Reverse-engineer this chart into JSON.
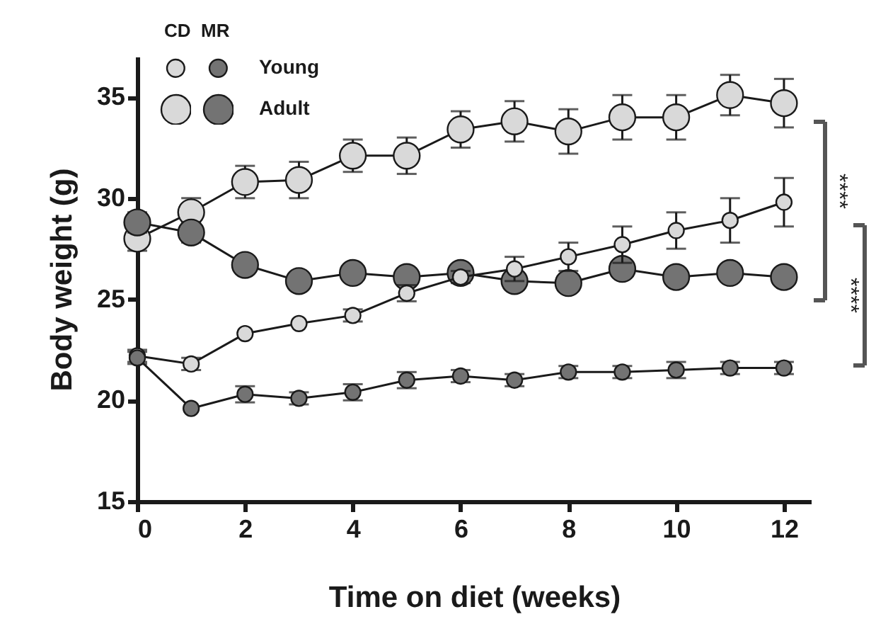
{
  "chart_data": {
    "type": "line",
    "xlabel": "Time on diet (weeks)",
    "ylabel": "Body weight (g)",
    "x": [
      0,
      1,
      2,
      3,
      4,
      5,
      6,
      7,
      8,
      9,
      10,
      11,
      12
    ],
    "xlim": [
      0,
      12.5
    ],
    "xticks": [
      0,
      2,
      4,
      6,
      8,
      10,
      12
    ],
    "ylim": [
      15,
      37
    ],
    "yticks": [
      15,
      20,
      25,
      30,
      35
    ],
    "grid": false,
    "marker": "circle",
    "line_style": "solid",
    "series": [
      {
        "color": "#d9d9d9",
        "values": [
          28.0,
          29.3,
          30.8,
          30.9,
          32.1,
          32.1,
          33.4,
          33.8,
          33.3,
          34.0,
          34.0,
          35.1,
          34.7
        ],
        "errors": [
          0.6,
          0.7,
          0.8,
          0.9,
          0.8,
          0.9,
          0.9,
          1.0,
          1.1,
          1.1,
          1.1,
          1.0,
          1.2
        ]
      },
      {
        "color": "#737373",
        "values": [
          28.8,
          28.3,
          26.7,
          25.9,
          26.3,
          26.1,
          26.3,
          25.9,
          25.8,
          26.5,
          26.1,
          26.3,
          26.1
        ],
        "errors": [
          0.5,
          0.5,
          null,
          null,
          null,
          0.4,
          0.4,
          null,
          null,
          null,
          null,
          null,
          null
        ]
      },
      {
        "color": "#d9d9d9",
        "values": [
          22.2,
          21.8,
          23.3,
          23.8,
          24.2,
          25.3,
          26.1,
          26.5,
          27.1,
          27.7,
          28.4,
          28.9,
          29.8
        ],
        "errors": [
          0.3,
          0.3,
          null,
          null,
          0.3,
          0.4,
          0.3,
          0.6,
          0.7,
          0.9,
          0.9,
          1.1,
          1.2
        ]
      },
      {
        "color": "#737373",
        "values": [
          22.1,
          19.6,
          20.3,
          20.1,
          20.4,
          21.0,
          21.2,
          21.0,
          21.4,
          21.4,
          21.5,
          21.6,
          21.6
        ],
        "errors": [
          0.3,
          null,
          0.4,
          0.3,
          0.4,
          0.4,
          0.3,
          0.3,
          0.3,
          0.3,
          0.4,
          0.3,
          0.3
        ]
      }
    ],
    "annotations": [
      "CD",
      "MR",
      "Young",
      "Adult",
      "****",
      "****"
    ]
  }
}
